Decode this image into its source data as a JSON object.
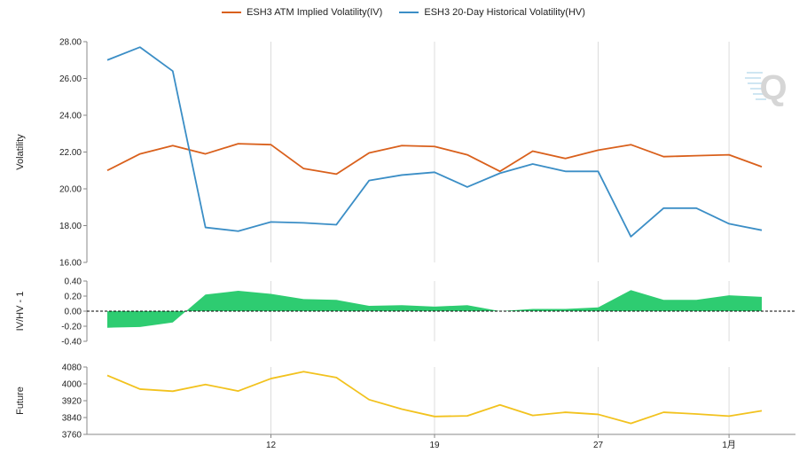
{
  "chart_data": [
    {
      "type": "line",
      "ylabel": "Volatility",
      "ylim": [
        16,
        28
      ],
      "yticks": [
        "16.00",
        "18.00",
        "20.00",
        "22.00",
        "24.00",
        "26.00",
        "28.00"
      ],
      "grid": "vertical",
      "legend": "top-center",
      "series": [
        {
          "name": "ESH3 ATM Implied Volatility(IV)",
          "color": "#d9601c",
          "values": [
            21.0,
            21.9,
            22.35,
            21.9,
            22.45,
            22.4,
            21.1,
            20.8,
            21.95,
            22.35,
            22.3,
            21.85,
            20.95,
            22.05,
            21.65,
            22.1,
            22.4,
            21.75,
            21.8,
            21.85,
            21.2
          ]
        },
        {
          "name": "ESH3 20-Day Historical Volatility(HV)",
          "color": "#3b8ec6",
          "values": [
            27.0,
            27.7,
            26.4,
            17.9,
            17.7,
            18.2,
            18.15,
            18.05,
            20.45,
            20.75,
            20.9,
            20.1,
            20.85,
            21.35,
            20.95,
            20.95,
            17.4,
            18.95,
            18.95,
            18.1,
            17.75
          ]
        }
      ]
    },
    {
      "type": "area",
      "ylabel": "IV/HV - 1",
      "ylim": [
        -0.4,
        0.4
      ],
      "yticks": [
        "-0.40",
        "-0.20",
        "0.00",
        "0.20",
        "0.40"
      ],
      "fill": "#2ecc71",
      "values": [
        -0.22,
        -0.21,
        -0.15,
        0.22,
        0.27,
        0.23,
        0.16,
        0.15,
        0.07,
        0.08,
        0.06,
        0.08,
        0.0,
        0.03,
        0.03,
        0.05,
        0.28,
        0.15,
        0.15,
        0.21,
        0.19
      ]
    },
    {
      "type": "line",
      "ylabel": "Future",
      "ylim": [
        3760,
        4080
      ],
      "yticks": [
        "3760",
        "3840",
        "3920",
        "4000",
        "4080"
      ],
      "color": "#f2c21e",
      "values": [
        4040,
        3975,
        3965,
        3997,
        3966,
        4025,
        4058,
        4030,
        3925,
        3880,
        3845,
        3848,
        3900,
        3850,
        3865,
        3855,
        3812,
        3865,
        3857,
        3847,
        3872
      ]
    }
  ],
  "x_ticks": [
    {
      "label": "12",
      "index": 5
    },
    {
      "label": "19",
      "index": 10
    },
    {
      "label": "27",
      "index": 15
    },
    {
      "label": "1月",
      "index": 19
    }
  ],
  "watermark": "Q"
}
